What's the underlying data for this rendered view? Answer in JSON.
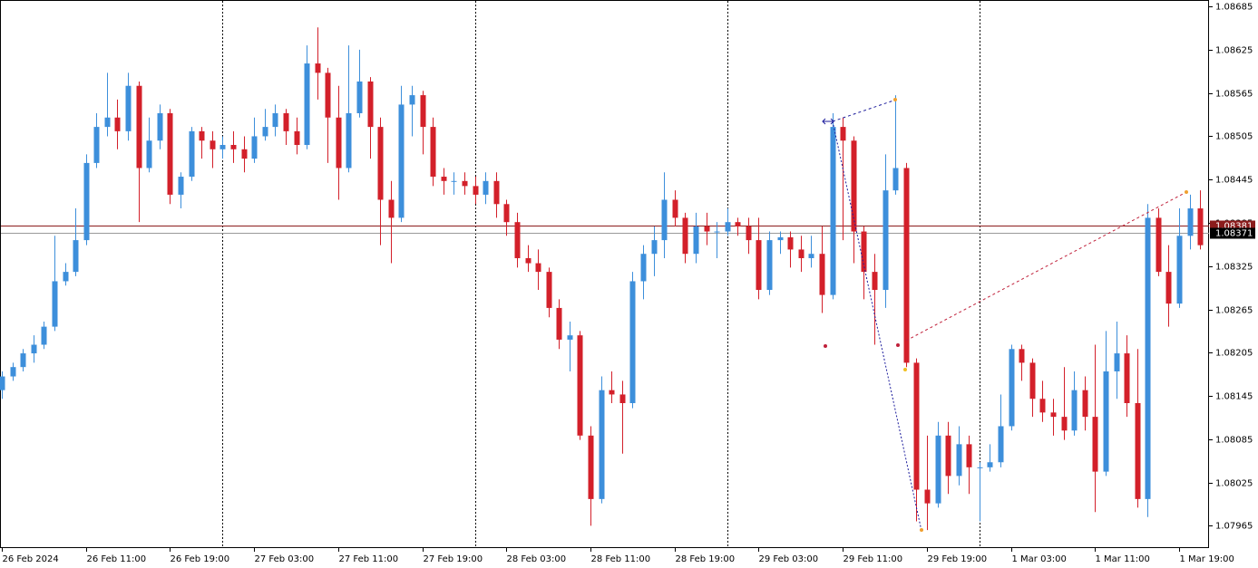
{
  "chart_data": {
    "type": "candlestick",
    "bull_color": "#3d8fdb",
    "bear_color": "#d3202a",
    "ylim": [
      1.07934,
      1.08694
    ],
    "yticks": [
      1.08685,
      1.08625,
      1.08565,
      1.08505,
      1.08445,
      1.08385,
      1.08325,
      1.08265,
      1.08205,
      1.08145,
      1.08085,
      1.08025,
      1.07965
    ],
    "xticks": [
      {
        "value": 0,
        "label": "26 Feb 2024"
      },
      {
        "value": 8,
        "label": "26 Feb 11:00"
      },
      {
        "value": 16,
        "label": "26 Feb 19:00"
      },
      {
        "value": 24,
        "label": "27 Feb 03:00"
      },
      {
        "value": 32,
        "label": "27 Feb 11:00"
      },
      {
        "value": 40,
        "label": "27 Feb 19:00"
      },
      {
        "value": 48,
        "label": "28 Feb 03:00"
      },
      {
        "value": 56,
        "label": "28 Feb 11:00"
      },
      {
        "value": 64,
        "label": "28 Feb 19:00"
      },
      {
        "value": 72,
        "label": "29 Feb 03:00"
      },
      {
        "value": 80,
        "label": "29 Feb 11:00"
      },
      {
        "value": 88,
        "label": "29 Feb 19:00"
      },
      {
        "value": 96,
        "label": "1 Mar 03:00"
      },
      {
        "value": 104,
        "label": "1 Mar 11:00"
      },
      {
        "value": 112,
        "label": "1 Mar 19:00"
      }
    ],
    "period_separators": [
      21,
      45,
      69,
      93
    ],
    "price_lines": [
      {
        "value": 1.08381,
        "color": "#8b1c1c"
      },
      {
        "value": 1.08371,
        "color": "#9a9a9a"
      }
    ],
    "ohlc": [
      [
        1.08153,
        1.08179,
        1.08141,
        1.08172
      ],
      [
        1.08172,
        1.08191,
        1.08166,
        1.08185
      ],
      [
        1.08185,
        1.0821,
        1.08179,
        1.08204
      ],
      [
        1.08204,
        1.08229,
        1.08191,
        1.08216
      ],
      [
        1.08216,
        1.08248,
        1.0821,
        1.08241
      ],
      [
        1.08241,
        1.08367,
        1.08235,
        1.08304
      ],
      [
        1.08304,
        1.08329,
        1.08298,
        1.08317
      ],
      [
        1.08317,
        1.08405,
        1.08311,
        1.08361
      ],
      [
        1.08361,
        1.0848,
        1.08354,
        1.08468
      ],
      [
        1.08468,
        1.08537,
        1.08461,
        1.08518
      ],
      [
        1.08518,
        1.08593,
        1.08505,
        1.08531
      ],
      [
        1.08531,
        1.08556,
        1.08487,
        1.08512
      ],
      [
        1.08512,
        1.08593,
        1.08499,
        1.08575
      ],
      [
        1.08575,
        1.08581,
        1.08386,
        1.08461
      ],
      [
        1.08461,
        1.08531,
        1.08455,
        1.08499
      ],
      [
        1.08499,
        1.08549,
        1.08487,
        1.08537
      ],
      [
        1.08537,
        1.08543,
        1.08411,
        1.08424
      ],
      [
        1.08424,
        1.08455,
        1.08405,
        1.08449
      ],
      [
        1.08449,
        1.08518,
        1.08443,
        1.08512
      ],
      [
        1.08512,
        1.08518,
        1.08474,
        1.08499
      ],
      [
        1.08499,
        1.08512,
        1.08461,
        1.08487
      ],
      [
        1.08487,
        1.08505,
        1.08474,
        1.08493
      ],
      [
        1.08493,
        1.08512,
        1.08468,
        1.08487
      ],
      [
        1.08487,
        1.08505,
        1.08455,
        1.08474
      ],
      [
        1.08474,
        1.08531,
        1.08468,
        1.08505
      ],
      [
        1.08505,
        1.08543,
        1.08499,
        1.08518
      ],
      [
        1.08518,
        1.08549,
        1.08505,
        1.08537
      ],
      [
        1.08537,
        1.08543,
        1.08493,
        1.08512
      ],
      [
        1.08512,
        1.08531,
        1.0848,
        1.08493
      ],
      [
        1.08493,
        1.08631,
        1.08487,
        1.08606
      ],
      [
        1.08606,
        1.08656,
        1.08556,
        1.08593
      ],
      [
        1.08593,
        1.086,
        1.08468,
        1.08531
      ],
      [
        1.08531,
        1.08575,
        1.08417,
        1.08461
      ],
      [
        1.08461,
        1.08631,
        1.08455,
        1.08537
      ],
      [
        1.08537,
        1.08625,
        1.08531,
        1.08581
      ],
      [
        1.08581,
        1.08587,
        1.08474,
        1.08518
      ],
      [
        1.08518,
        1.08531,
        1.08354,
        1.08417
      ],
      [
        1.08417,
        1.08443,
        1.08329,
        1.08392
      ],
      [
        1.08392,
        1.08575,
        1.08386,
        1.08549
      ],
      [
        1.08549,
        1.08575,
        1.08505,
        1.08562
      ],
      [
        1.08562,
        1.08568,
        1.0848,
        1.08518
      ],
      [
        1.08518,
        1.08531,
        1.08436,
        1.08449
      ],
      [
        1.08449,
        1.08461,
        1.08424,
        1.08443
      ],
      [
        1.08443,
        1.08455,
        1.08424,
        1.08443
      ],
      [
        1.08443,
        1.08455,
        1.08424,
        1.08436
      ],
      [
        1.08436,
        1.08449,
        1.08411,
        1.08424
      ],
      [
        1.08424,
        1.08455,
        1.08411,
        1.08443
      ],
      [
        1.08443,
        1.08455,
        1.08392,
        1.08411
      ],
      [
        1.08411,
        1.08417,
        1.08367,
        1.08386
      ],
      [
        1.08386,
        1.08399,
        1.08323,
        1.08336
      ],
      [
        1.08336,
        1.08354,
        1.08317,
        1.08329
      ],
      [
        1.08329,
        1.08348,
        1.08292,
        1.08317
      ],
      [
        1.08317,
        1.08323,
        1.08254,
        1.08267
      ],
      [
        1.08267,
        1.08279,
        1.0821,
        1.08223
      ],
      [
        1.08223,
        1.08248,
        1.08179,
        1.08229
      ],
      [
        1.08229,
        1.08235,
        1.08084,
        1.0809
      ],
      [
        1.0809,
        1.08103,
        1.07965,
        1.08002
      ],
      [
        1.08002,
        1.08172,
        1.07996,
        1.08153
      ],
      [
        1.08153,
        1.08179,
        1.08135,
        1.08147
      ],
      [
        1.08147,
        1.08166,
        1.08065,
        1.08135
      ],
      [
        1.08135,
        1.08317,
        1.08128,
        1.08304
      ],
      [
        1.08304,
        1.08354,
        1.08279,
        1.08342
      ],
      [
        1.08342,
        1.0838,
        1.08311,
        1.08361
      ],
      [
        1.08361,
        1.08455,
        1.08336,
        1.08417
      ],
      [
        1.08417,
        1.0843,
        1.0838,
        1.08392
      ],
      [
        1.08392,
        1.08399,
        1.08329,
        1.08342
      ],
      [
        1.08342,
        1.08399,
        1.08329,
        1.0838
      ],
      [
        1.0838,
        1.08399,
        1.08354,
        1.08373
      ],
      [
        1.08373,
        1.08386,
        1.08336,
        1.08373
      ],
      [
        1.08373,
        1.08405,
        1.08367,
        1.08386
      ],
      [
        1.08386,
        1.08392,
        1.08367,
        1.0838
      ],
      [
        1.0838,
        1.08392,
        1.08342,
        1.08361
      ],
      [
        1.08361,
        1.08392,
        1.08279,
        1.08292
      ],
      [
        1.08292,
        1.08373,
        1.08285,
        1.08361
      ],
      [
        1.08361,
        1.08373,
        1.08342,
        1.08365
      ],
      [
        1.08365,
        1.08373,
        1.08323,
        1.08348
      ],
      [
        1.08348,
        1.08367,
        1.08317,
        1.08336
      ],
      [
        1.08336,
        1.08367,
        1.08323,
        1.08342
      ],
      [
        1.08342,
        1.0838,
        1.0826,
        1.08285
      ],
      [
        1.08285,
        1.08537,
        1.08279,
        1.08518
      ],
      [
        1.08518,
        1.08531,
        1.08361,
        1.08499
      ],
      [
        1.08499,
        1.08505,
        1.08329,
        1.08373
      ],
      [
        1.08373,
        1.0838,
        1.08279,
        1.08317
      ],
      [
        1.08317,
        1.08342,
        1.08216,
        1.08292
      ],
      [
        1.08292,
        1.0848,
        1.08267,
        1.0843
      ],
      [
        1.0843,
        1.08562,
        1.08424,
        1.08461
      ],
      [
        1.08461,
        1.08468,
        1.08185,
        1.08191
      ],
      [
        1.08191,
        1.08197,
        1.07971,
        1.08015
      ],
      [
        1.08015,
        1.0809,
        1.07959,
        1.07996
      ],
      [
        1.07996,
        1.08109,
        1.0799,
        1.0809
      ],
      [
        1.0809,
        1.08109,
        1.08009,
        1.08034
      ],
      [
        1.08034,
        1.08103,
        1.08021,
        1.08078
      ],
      [
        1.08078,
        1.0809,
        1.08009,
        1.08046
      ],
      [
        1.08046,
        1.08053,
        1.07971,
        1.08046
      ],
      [
        1.08046,
        1.08078,
        1.0804,
        1.08053
      ],
      [
        1.08053,
        1.08147,
        1.08046,
        1.08103
      ],
      [
        1.08103,
        1.08216,
        1.08097,
        1.0821
      ],
      [
        1.0821,
        1.08216,
        1.08166,
        1.08191
      ],
      [
        1.08191,
        1.08197,
        1.08116,
        1.08141
      ],
      [
        1.08141,
        1.08166,
        1.08109,
        1.08122
      ],
      [
        1.08122,
        1.08141,
        1.0809,
        1.08116
      ],
      [
        1.08116,
        1.08185,
        1.08084,
        1.08097
      ],
      [
        1.08097,
        1.08179,
        1.0809,
        1.08153
      ],
      [
        1.08153,
        1.08172,
        1.08097,
        1.08116
      ],
      [
        1.08116,
        1.08216,
        1.07984,
        1.0804
      ],
      [
        1.0804,
        1.08235,
        1.08034,
        1.08179
      ],
      [
        1.08179,
        1.08248,
        1.08141,
        1.08204
      ],
      [
        1.08204,
        1.08229,
        1.08116,
        1.08135
      ],
      [
        1.08135,
        1.0821,
        1.0799,
        1.08002
      ],
      [
        1.08002,
        1.08411,
        1.07977,
        1.08392
      ],
      [
        1.08392,
        1.08405,
        1.08311,
        1.08317
      ],
      [
        1.08317,
        1.08354,
        1.08241,
        1.08273
      ],
      [
        1.08273,
        1.08405,
        1.08267,
        1.08367
      ],
      [
        1.08367,
        1.08424,
        1.08348,
        1.08405
      ],
      [
        1.08405,
        1.0843,
        1.08348,
        1.08354
      ]
    ]
  }
}
